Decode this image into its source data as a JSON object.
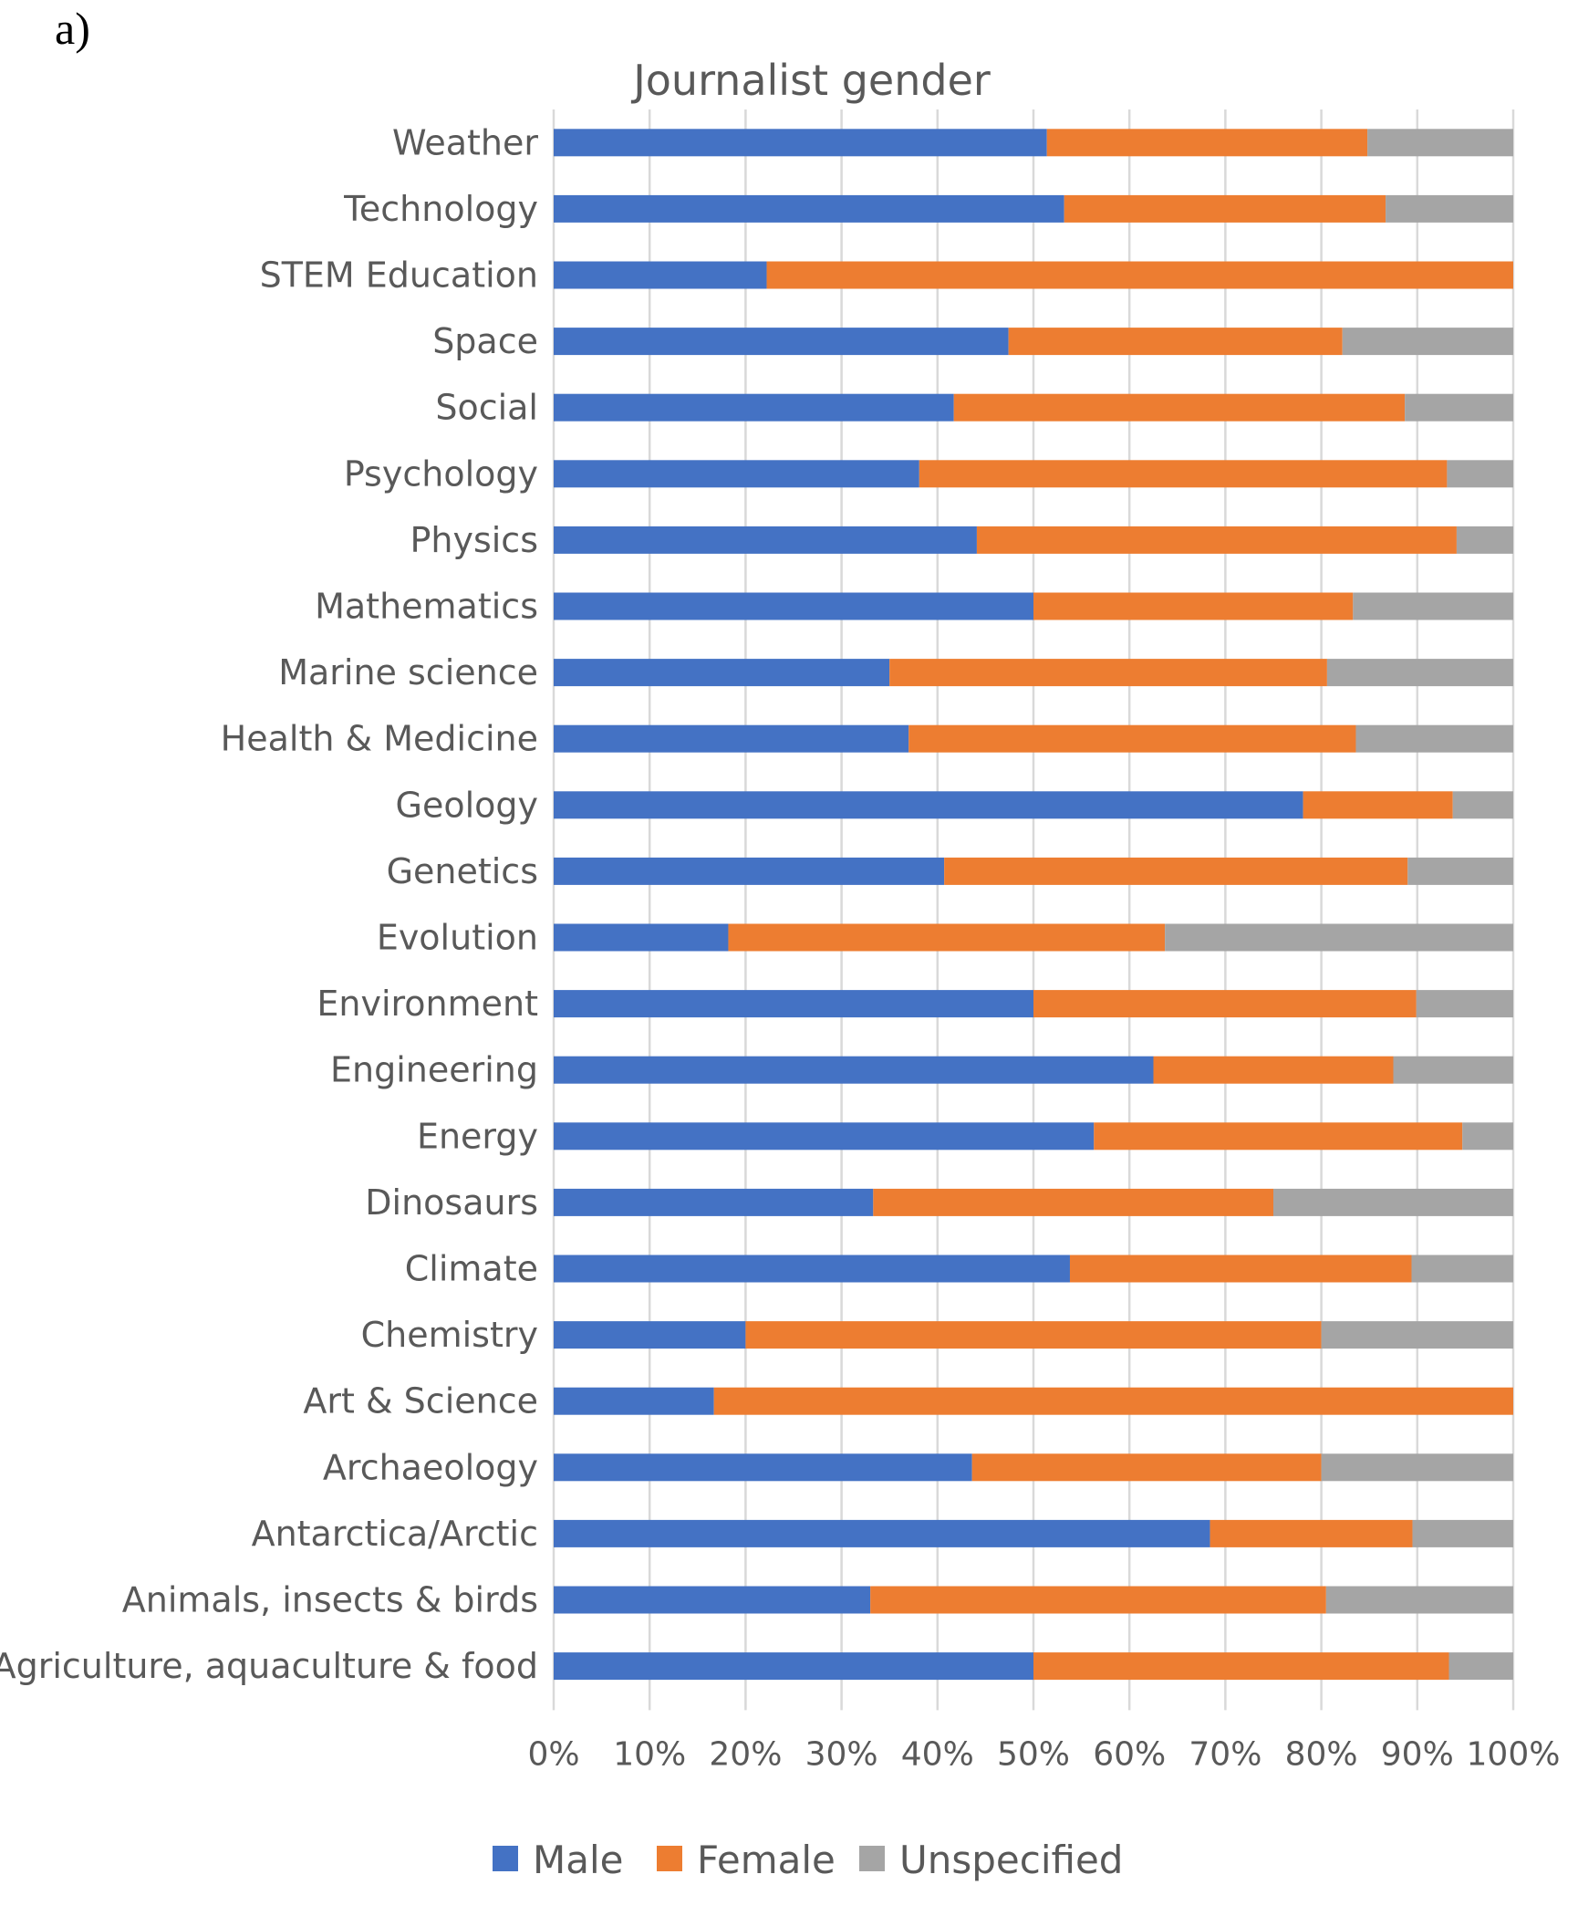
{
  "panel_label": "a)",
  "chart_data": {
    "type": "bar",
    "orientation": "horizontal",
    "stacked": "percent",
    "title": "Journalist gender",
    "categories": [
      "Weather",
      "Technology",
      "STEM Education",
      "Space",
      "Social",
      "Psychology",
      "Physics",
      "Mathematics",
      "Marine science",
      "Health & Medicine",
      "Geology",
      "Genetics",
      "Evolution",
      "Environment",
      "Engineering",
      "Energy",
      "Dinosaurs",
      "Climate",
      "Chemistry",
      "Art & Science",
      "Archaeology",
      "Antarctica/Arctic",
      "Animals, insects & birds",
      "Agriculture, aquaculture & food"
    ],
    "series": [
      {
        "name": "Male",
        "color": "#4472C4",
        "values": [
          51.4,
          53.2,
          22.2,
          47.4,
          41.7,
          38.1,
          44.1,
          50.0,
          35.0,
          37.0,
          78.1,
          40.7,
          18.2,
          50.0,
          62.5,
          56.3,
          33.3,
          53.8,
          20.0,
          16.7,
          43.6,
          68.4,
          33.0,
          50.0
        ]
      },
      {
        "name": "Female",
        "color": "#ED7D31",
        "values": [
          33.4,
          33.5,
          77.8,
          34.8,
          47.0,
          55.0,
          50.0,
          33.3,
          45.6,
          46.6,
          15.6,
          48.3,
          45.5,
          39.9,
          25.0,
          38.4,
          41.7,
          35.6,
          60.0,
          83.3,
          36.4,
          21.1,
          47.5,
          43.3
        ]
      },
      {
        "name": "Unspecified",
        "color": "#A5A5A5",
        "values": [
          15.2,
          13.3,
          0.0,
          17.8,
          11.3,
          6.9,
          5.9,
          16.7,
          19.4,
          16.4,
          6.3,
          11.0,
          36.3,
          10.1,
          12.5,
          5.3,
          25.0,
          10.6,
          20.0,
          0.0,
          20.0,
          10.5,
          19.5,
          6.7
        ]
      }
    ],
    "xlim": [
      0,
      100
    ],
    "xticks": [
      "0%",
      "10%",
      "20%",
      "30%",
      "40%",
      "50%",
      "60%",
      "70%",
      "80%",
      "90%",
      "100%"
    ],
    "grid": true,
    "legend_position": "bottom",
    "xlabel": "",
    "ylabel": ""
  }
}
